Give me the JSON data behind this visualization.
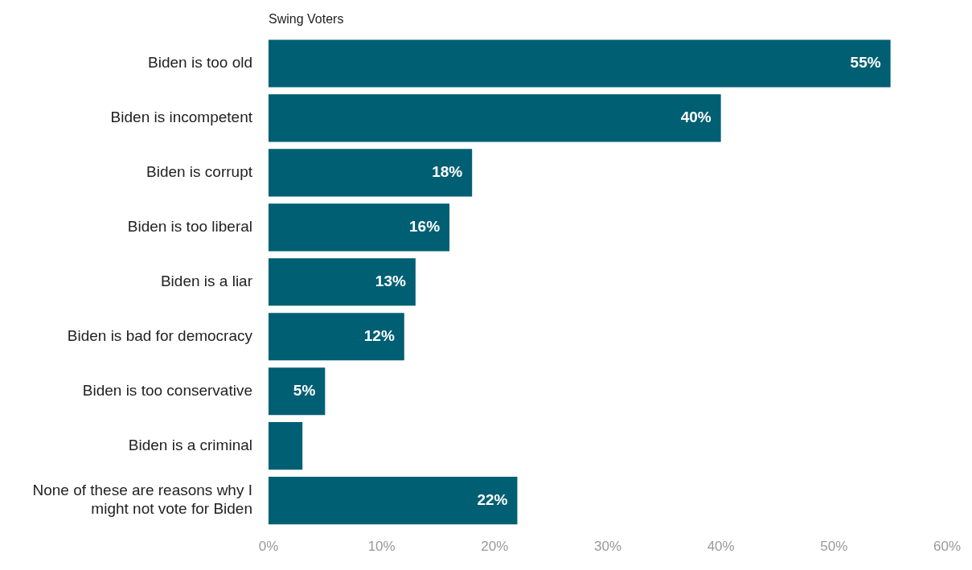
{
  "chart_data": {
    "type": "bar",
    "orientation": "horizontal",
    "title": "Swing Voters",
    "categories": [
      "Biden is too old",
      "Biden is incompetent",
      "Biden is corrupt",
      "Biden is too liberal",
      "Biden is a liar",
      "Biden is bad for democracy",
      "Biden is too conservative",
      "Biden is a criminal",
      "None of these are reasons why I might not vote for Biden"
    ],
    "values": [
      55,
      40,
      18,
      16,
      13,
      12,
      5,
      3,
      22
    ],
    "value_labels": [
      "55%",
      "40%",
      "18%",
      "16%",
      "13%",
      "12%",
      "5%",
      null,
      "22%"
    ],
    "color": "#005f73",
    "xlim": [
      0,
      60
    ],
    "xticks": [
      {
        "value": 0,
        "label": "0%"
      },
      {
        "value": 10,
        "label": "10%"
      },
      {
        "value": 20,
        "label": "20%"
      },
      {
        "value": 30,
        "label": "30%"
      },
      {
        "value": 40,
        "label": "40%"
      },
      {
        "value": 50,
        "label": "50%"
      },
      {
        "value": 60,
        "label": "60%"
      }
    ],
    "grid": false,
    "legend": false
  }
}
